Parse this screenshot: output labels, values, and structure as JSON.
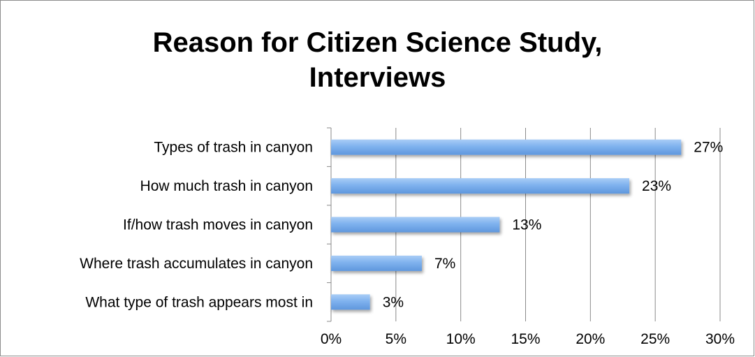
{
  "chart_data": {
    "type": "bar",
    "orientation": "horizontal",
    "title_lines": [
      "Reason for Citizen Science Study,",
      "Interviews"
    ],
    "categories": [
      "Types of trash in canyon",
      "How much trash in canyon",
      "If/how trash moves in canyon",
      "Where trash accumulates in canyon",
      "What type of trash appears most in"
    ],
    "values": [
      27,
      23,
      13,
      7,
      3
    ],
    "data_labels": [
      "27%",
      "23%",
      "13%",
      "7%",
      "3%"
    ],
    "xlim": [
      0,
      30
    ],
    "x_ticks": [
      0,
      5,
      10,
      15,
      20,
      25,
      30
    ],
    "x_tick_labels": [
      "0%",
      "5%",
      "10%",
      "15%",
      "20%",
      "25%",
      "30%"
    ],
    "grid": "vertical",
    "legend": "none",
    "bar_color": "#7fb2ee"
  }
}
